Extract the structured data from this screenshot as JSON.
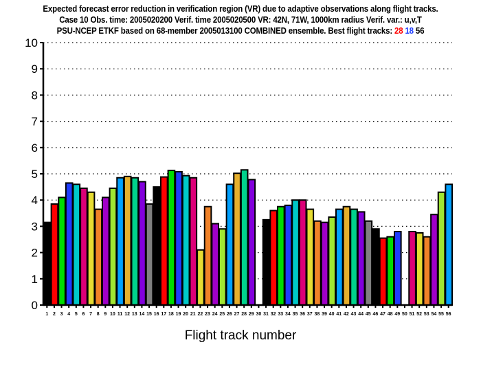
{
  "chart_data": {
    "type": "bar",
    "title_lines": [
      "Expected forecast error reduction in verification region (VR) due to adaptive observations along flight tracks.",
      "Case 10   Obs. time: 2005020200   Verif. time 2005020500   VR: 42N, 71W, 1000km radius   Verif. var.: u,v,T",
      "PSU-NCEP ETKF based on 68-member 2005013100 COMBINED ensemble.   Best flight tracks:"
    ],
    "best_tracks": [
      {
        "label": "28",
        "color": "#ff0000"
      },
      {
        "label": "18",
        "color": "#1e3cff"
      },
      {
        "label": "56",
        "color": "#000000"
      }
    ],
    "xlabel": "Flight track number",
    "ylabel": "",
    "ylim": [
      0,
      10
    ],
    "yticks": [
      "0",
      "1",
      "2",
      "3",
      "4",
      "5",
      "6",
      "7",
      "8",
      "9",
      "10"
    ],
    "grid": "horizontal dotted",
    "categories": [
      "1",
      "2",
      "3",
      "4",
      "5",
      "6",
      "7",
      "8",
      "9",
      "10",
      "11",
      "12",
      "13",
      "14",
      "15",
      "16",
      "17",
      "18",
      "19",
      "20",
      "21",
      "22",
      "23",
      "24",
      "25",
      "26",
      "27",
      "28",
      "29",
      "30",
      "31",
      "32",
      "33",
      "34",
      "35",
      "36",
      "37",
      "38",
      "39",
      "40",
      "41",
      "42",
      "43",
      "44",
      "45",
      "46",
      "47",
      "48",
      "49",
      "50",
      "51",
      "52",
      "53",
      "54",
      "55",
      "56"
    ],
    "values": [
      3.15,
      3.85,
      4.1,
      4.65,
      4.6,
      4.45,
      4.3,
      3.65,
      4.1,
      4.45,
      4.85,
      4.9,
      4.85,
      4.7,
      3.85,
      4.5,
      4.88,
      5.13,
      5.08,
      4.93,
      4.85,
      2.1,
      3.75,
      3.1,
      2.9,
      4.6,
      5.02,
      5.15,
      4.78,
      0,
      3.25,
      3.6,
      3.75,
      3.8,
      4.0,
      4.0,
      3.65,
      3.2,
      3.15,
      3.35,
      3.65,
      3.75,
      3.65,
      3.55,
      3.2,
      2.9,
      2.55,
      2.6,
      2.8,
      0,
      2.8,
      2.75,
      2.6,
      3.45,
      4.3,
      4.6
    ],
    "color_cycle": [
      "#000000",
      "#ff0000",
      "#00dc00",
      "#1e3cff",
      "#00c8c8",
      "#dc0078",
      "#e6dc32",
      "#f08228",
      "#a000c8",
      "#a0e632",
      "#00a0ff",
      "#e6af2d",
      "#00d28c",
      "#8200dc",
      "#808080"
    ]
  }
}
